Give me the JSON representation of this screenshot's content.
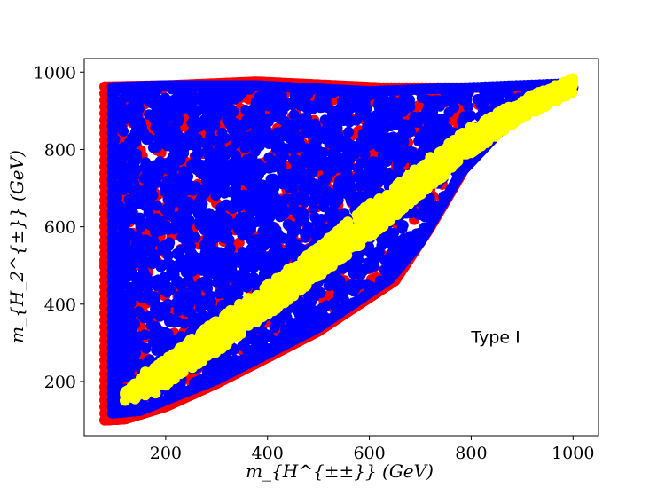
{
  "chart_data": {
    "type": "scatter",
    "title": "",
    "xlabel": "m_{H^{±±}} (GeV)",
    "ylabel": "m_{H_2^{±}} (GeV)",
    "xlim": [
      40,
      1050
    ],
    "ylim": [
      60,
      1035
    ],
    "xticks": [
      200,
      400,
      600,
      800,
      1000
    ],
    "yticks": [
      200,
      400,
      600,
      800,
      1000
    ],
    "grid": false,
    "annotation": "Type I",
    "annotation_position": {
      "x": 800,
      "y": 300
    },
    "series": [
      {
        "color": "#ff0000",
        "region": [
          [
            80,
            100
          ],
          [
            120,
            103
          ],
          [
            200,
            135
          ],
          [
            300,
            195
          ],
          [
            400,
            262
          ],
          [
            500,
            330
          ],
          [
            650,
            460
          ],
          [
            720,
            600
          ],
          [
            800,
            780
          ],
          [
            900,
            900
          ],
          [
            1000,
            960
          ],
          [
            620,
            960
          ],
          [
            380,
            975
          ],
          [
            200,
            965
          ],
          [
            80,
            962
          ]
        ]
      },
      {
        "color": "#0000ff",
        "region": [
          [
            95,
            118
          ],
          [
            150,
            125
          ],
          [
            300,
            205
          ],
          [
            400,
            272
          ],
          [
            500,
            340
          ],
          [
            640,
            465
          ],
          [
            700,
            560
          ],
          [
            780,
            740
          ],
          [
            880,
            880
          ],
          [
            960,
            935
          ],
          [
            1000,
            960
          ],
          [
            980,
            970
          ],
          [
            600,
            950
          ],
          [
            380,
            965
          ],
          [
            200,
            965
          ],
          [
            95,
            960
          ]
        ]
      },
      {
        "color": "#ffff00",
        "band": [
          [
            120,
            150,
            175
          ],
          [
            200,
            190,
            260
          ],
          [
            300,
            275,
            360
          ],
          [
            400,
            370,
            450
          ],
          [
            500,
            470,
            550
          ],
          [
            600,
            570,
            660
          ],
          [
            700,
            680,
            760
          ],
          [
            800,
            790,
            860
          ],
          [
            900,
            880,
            930
          ],
          [
            1000,
            945,
            985
          ]
        ],
        "points": [
          [
            140,
            155
          ],
          [
            160,
            165
          ],
          [
            180,
            170
          ],
          [
            200,
            190
          ],
          [
            160,
            225
          ],
          [
            185,
            235
          ],
          [
            210,
            250
          ],
          [
            240,
            270
          ],
          [
            260,
            300
          ]
        ]
      }
    ]
  }
}
